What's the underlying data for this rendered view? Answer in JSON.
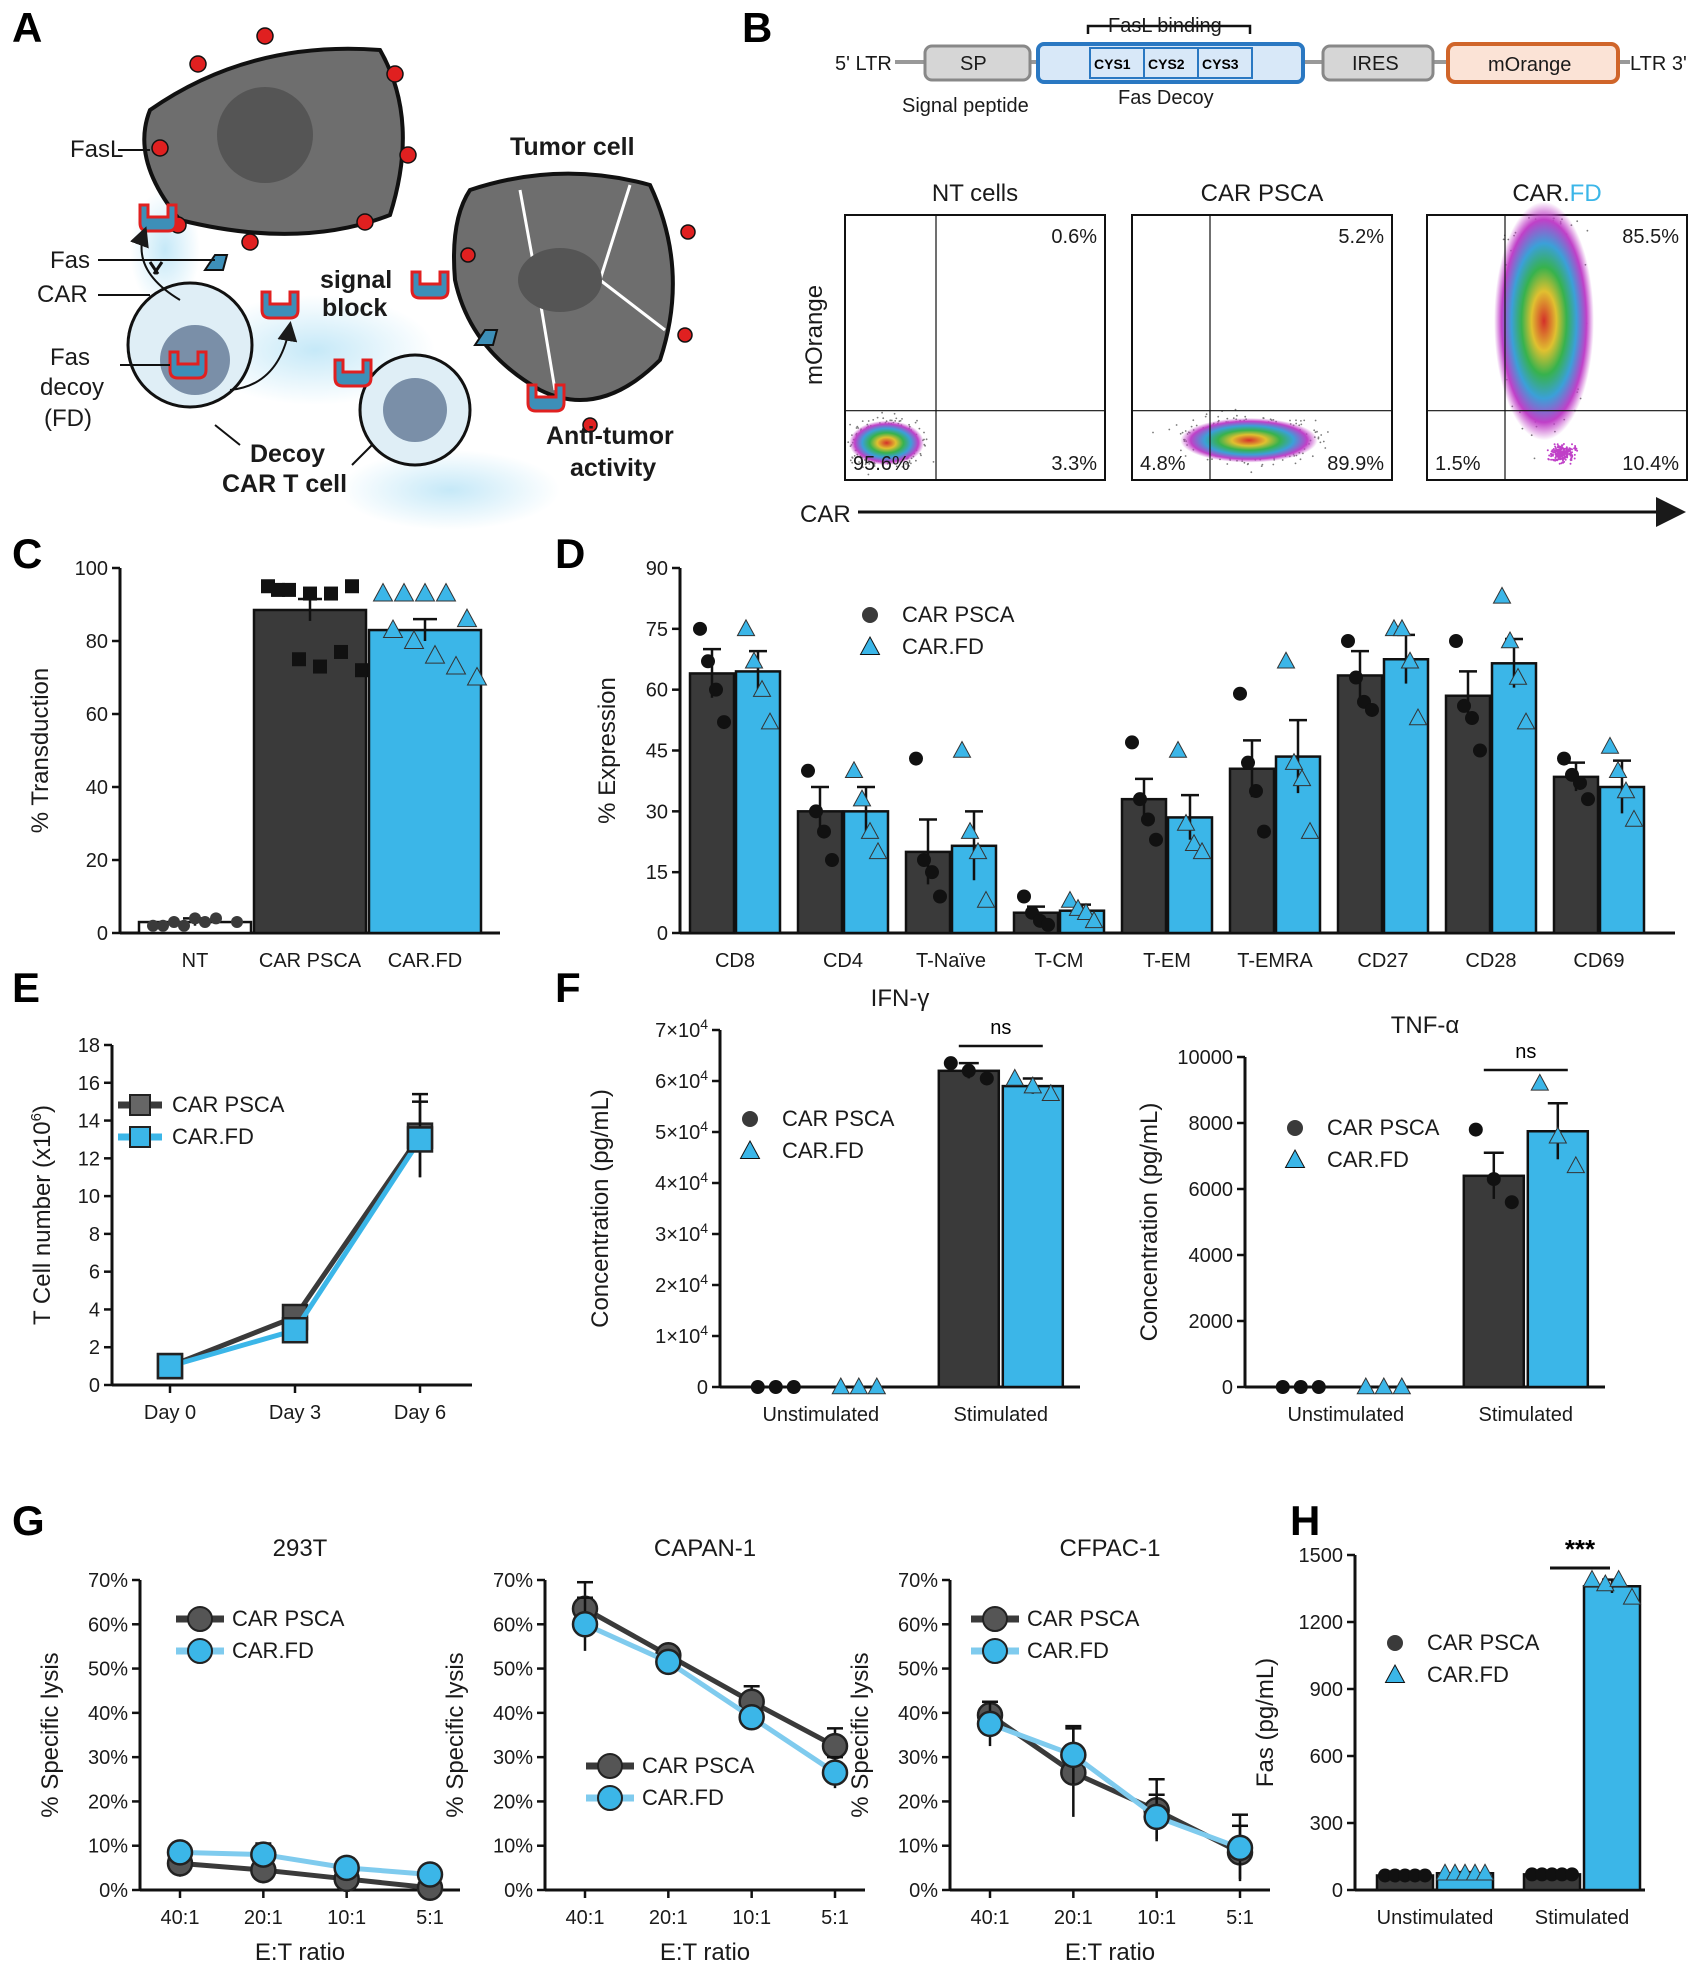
{
  "colors": {
    "dark": "#3a3a3a",
    "blue": "#3bb6e8",
    "red": "#e02020",
    "gray_cell": "#6e6e6e",
    "orange": "#e07a3b",
    "construct_blue": "#2a78c2"
  },
  "panelA": {
    "letter": "A",
    "labels": {
      "fasl": "FasL",
      "fas": "Fas",
      "car": "CAR",
      "fas_decoy": [
        "Fas",
        "decoy",
        "(FD)"
      ],
      "tumor": "Tumor cell",
      "signal_block": [
        "signal",
        "block"
      ],
      "decoy_cart": [
        "Decoy",
        "CAR T cell"
      ],
      "anti_tumor": [
        "Anti-tumor",
        "activity"
      ]
    }
  },
  "panelB": {
    "letter": "B",
    "construct": {
      "ltr5": "5' LTR",
      "sp": "SP",
      "signal_peptide": "Signal peptide",
      "fasl_binding": "FasL binding",
      "cys": [
        "CYS1",
        "CYS2",
        "CYS3"
      ],
      "fas_decoy": "Fas Decoy",
      "ires": "IRES",
      "morange": "mOrange",
      "ltr3": "LTR 3'"
    },
    "flow": {
      "ylabel": "mOrange",
      "xlabel": "CAR",
      "plots": [
        {
          "title_parts": [
            "NT cells",
            ""
          ],
          "ur": "0.6%",
          "ll": "95.6%",
          "lr": "3.3%"
        },
        {
          "title_parts": [
            "CAR PSCA",
            ""
          ],
          "ur": "5.2%",
          "ll": "4.8%",
          "lr": "89.9%"
        },
        {
          "title_parts": [
            "CAR.",
            "FD"
          ],
          "ur": "85.5%",
          "ll": "1.5%",
          "lr": "10.4%"
        }
      ]
    }
  },
  "chart_data": [
    {
      "panel": "C",
      "type": "bar",
      "title": "",
      "ylabel": "% Transduction",
      "xlabel": "",
      "categories": [
        "NT",
        "CAR PSCA",
        "CAR.FD"
      ],
      "values": [
        3,
        88.5,
        83
      ],
      "errors": [
        1,
        3,
        3
      ],
      "points": [
        [
          2,
          3,
          4,
          4,
          3,
          2,
          2,
          3
        ],
        [
          95,
          94,
          93,
          93,
          95,
          94,
          75,
          73,
          77,
          72
        ],
        [
          93,
          93,
          93,
          93,
          86,
          83,
          80,
          76,
          73,
          70
        ]
      ],
      "ylim": [
        0,
        100
      ],
      "yticks": [
        0,
        20,
        40,
        60,
        80,
        100
      ]
    },
    {
      "panel": "D",
      "type": "bar",
      "ylabel": "% Expression",
      "xlabel": "",
      "categories": [
        "CD8",
        "CD4",
        "T-Naïve",
        "T-CM",
        "T-EM",
        "T-EMRA",
        "CD27",
        "CD28",
        "CD69"
      ],
      "series": [
        {
          "name": "CAR PSCA",
          "values": [
            64,
            30,
            20,
            5,
            33,
            40.5,
            63.5,
            58.5,
            38.5
          ],
          "errors": [
            6,
            6,
            8,
            1.5,
            5,
            7,
            6,
            6,
            3.5
          ],
          "points": [
            [
              75,
              67,
              60,
              52
            ],
            [
              40,
              30,
              25,
              18
            ],
            [
              43,
              18,
              15,
              9
            ],
            [
              9,
              5,
              3,
              2
            ],
            [
              47,
              33,
              28,
              23
            ],
            [
              59,
              42,
              35,
              25
            ],
            [
              72,
              63,
              57,
              55
            ],
            [
              72,
              56,
              53,
              45
            ],
            [
              43,
              39,
              37,
              33
            ]
          ]
        },
        {
          "name": "CAR.FD",
          "values": [
            64.5,
            30,
            21.5,
            5.5,
            28.5,
            43.5,
            67.5,
            66.5,
            36
          ],
          "errors": [
            5,
            6,
            8.5,
            1.5,
            5.5,
            9,
            6,
            6,
            6.5
          ],
          "points": [
            [
              75,
              67,
              60,
              52
            ],
            [
              40,
              33,
              25,
              20
            ],
            [
              45,
              25,
              20,
              8
            ],
            [
              8,
              6,
              5,
              3
            ],
            [
              45,
              27,
              22,
              20
            ],
            [
              67,
              42,
              38,
              25
            ],
            [
              75,
              75,
              67,
              53
            ],
            [
              83,
              72,
              63,
              52
            ],
            [
              46,
              40,
              35,
              28
            ]
          ]
        }
      ],
      "ylim": [
        0,
        90
      ],
      "yticks": [
        0,
        15,
        30,
        45,
        60,
        75,
        90
      ]
    },
    {
      "panel": "E",
      "type": "line",
      "ylabel": "T Cell number (x10",
      "ylabel_sup": "6",
      "ylabel_end": ")",
      "xlabel": "",
      "x": [
        "Day 0",
        "Day 3",
        "Day 6"
      ],
      "series": [
        {
          "name": "CAR PSCA",
          "values": [
            1,
            3.6,
            13.2
          ],
          "errors": [
            0,
            0.6,
            2.2
          ]
        },
        {
          "name": "CAR.FD",
          "values": [
            1,
            2.9,
            13
          ],
          "errors": [
            0,
            0.3,
            2
          ]
        }
      ],
      "ylim": [
        0,
        18
      ],
      "yticks": [
        0,
        2,
        4,
        6,
        8,
        10,
        12,
        14,
        16,
        18
      ]
    },
    {
      "panel": "F1",
      "type": "bar",
      "title": "IFN-γ",
      "ylabel": "Concentration (pg/mL)",
      "significance": "ns",
      "categories": [
        "Unstimulated",
        "Stimulated"
      ],
      "series": [
        {
          "name": "CAR PSCA",
          "values": [
            0,
            62000
          ],
          "errors": [
            0,
            1500
          ],
          "points": [
            [
              0,
              0,
              0
            ],
            [
              63500,
              62000,
              60500
            ]
          ]
        },
        {
          "name": "CAR.FD",
          "values": [
            0,
            59000
          ],
          "errors": [
            0,
            1500
          ],
          "points": [
            [
              0,
              0,
              0
            ],
            [
              60500,
              59000,
              57500
            ]
          ]
        }
      ],
      "ylim": [
        0,
        70000
      ],
      "yticks": [
        0,
        10000,
        20000,
        30000,
        40000,
        50000,
        60000,
        70000
      ],
      "ytick_labels": [
        "0",
        "1×10",
        "2×10",
        "3×10",
        "4×10",
        "5×10",
        "6×10",
        "7×10"
      ],
      "ytick_exp": "4"
    },
    {
      "panel": "F2",
      "type": "bar",
      "title": "TNF-α",
      "ylabel": "Concentration (pg/mL)",
      "significance": "ns",
      "categories": [
        "Unstimulated",
        "Stimulated"
      ],
      "series": [
        {
          "name": "CAR PSCA",
          "values": [
            0,
            6400
          ],
          "errors": [
            0,
            700
          ],
          "points": [
            [
              0,
              0,
              0
            ],
            [
              7800,
              6300,
              5600
            ]
          ]
        },
        {
          "name": "CAR.FD",
          "values": [
            0,
            7750
          ],
          "errors": [
            0,
            850
          ],
          "points": [
            [
              0,
              0,
              0
            ],
            [
              9200,
              7600,
              6700
            ]
          ]
        }
      ],
      "ylim": [
        0,
        10000
      ],
      "yticks": [
        0,
        2000,
        4000,
        6000,
        8000,
        10000
      ]
    },
    {
      "panel": "G1",
      "type": "line",
      "title": "293T",
      "ylabel": "% Specific lysis",
      "xlabel": "E:T ratio",
      "x": [
        "40:1",
        "20:1",
        "10:1",
        "5:1"
      ],
      "series": [
        {
          "name": "CAR PSCA",
          "values": [
            6,
            4.5,
            2.5,
            0.5
          ],
          "errors": [
            3,
            3,
            1.5,
            0.5
          ]
        },
        {
          "name": "CAR.FD",
          "values": [
            8.5,
            8,
            5,
            3.5
          ],
          "errors": [
            1,
            2.5,
            1,
            1
          ]
        }
      ],
      "ylim": [
        0,
        70
      ],
      "yticks": [
        0,
        10,
        20,
        30,
        40,
        50,
        60,
        70
      ],
      "ytick_suffix": "%"
    },
    {
      "panel": "G2",
      "type": "line",
      "title": "CAPAN-1",
      "ylabel": "% Specific lysis",
      "xlabel": "E:T ratio",
      "x": [
        "40:1",
        "20:1",
        "10:1",
        "5:1"
      ],
      "series": [
        {
          "name": "CAR PSCA",
          "values": [
            63.5,
            53,
            42.5,
            32.5
          ],
          "errors": [
            6,
            1.5,
            3.5,
            4
          ]
        },
        {
          "name": "CAR.FD",
          "values": [
            60,
            51.5,
            39,
            26.5
          ],
          "errors": [
            6,
            1,
            2,
            3.5
          ]
        }
      ],
      "ylim": [
        0,
        70
      ],
      "yticks": [
        0,
        10,
        20,
        30,
        40,
        50,
        60,
        70
      ],
      "ytick_suffix": "%"
    },
    {
      "panel": "G3",
      "type": "line",
      "title": "CFPAC-1",
      "ylabel": "% Specific lysis",
      "xlabel": "E:T ratio",
      "x": [
        "40:1",
        "20:1",
        "10:1",
        "5:1"
      ],
      "series": [
        {
          "name": "CAR PSCA",
          "values": [
            39.5,
            26.5,
            18,
            8.5
          ],
          "errors": [
            3,
            10,
            7,
            6
          ]
        },
        {
          "name": "CAR.FD",
          "values": [
            37.5,
            30.5,
            16.5,
            9.5
          ],
          "errors": [
            5,
            6.5,
            5,
            7.5
          ]
        }
      ],
      "ylim": [
        0,
        70
      ],
      "yticks": [
        0,
        10,
        20,
        30,
        40,
        50,
        60,
        70
      ],
      "ytick_suffix": "%"
    },
    {
      "panel": "H",
      "type": "bar",
      "ylabel": "Fas (pg/mL)",
      "significance": "***",
      "categories": [
        "Unstimulated",
        "Stimulated"
      ],
      "series": [
        {
          "name": "CAR PSCA",
          "values": [
            65,
            70
          ],
          "errors": [
            5,
            5
          ],
          "points": [
            [
              65,
              65,
              65,
              65,
              65
            ],
            [
              70,
              70,
              70,
              70,
              70
            ]
          ]
        },
        {
          "name": "CAR.FD",
          "values": [
            75,
            1360
          ],
          "errors": [
            5,
            30
          ],
          "points": [
            [
              75,
              75,
              75,
              75,
              75
            ],
            [
              1390,
              1370,
              1390,
              1310
            ]
          ]
        }
      ],
      "ylim": [
        0,
        1500
      ],
      "yticks": [
        0,
        300,
        600,
        900,
        1200,
        1500
      ]
    }
  ]
}
